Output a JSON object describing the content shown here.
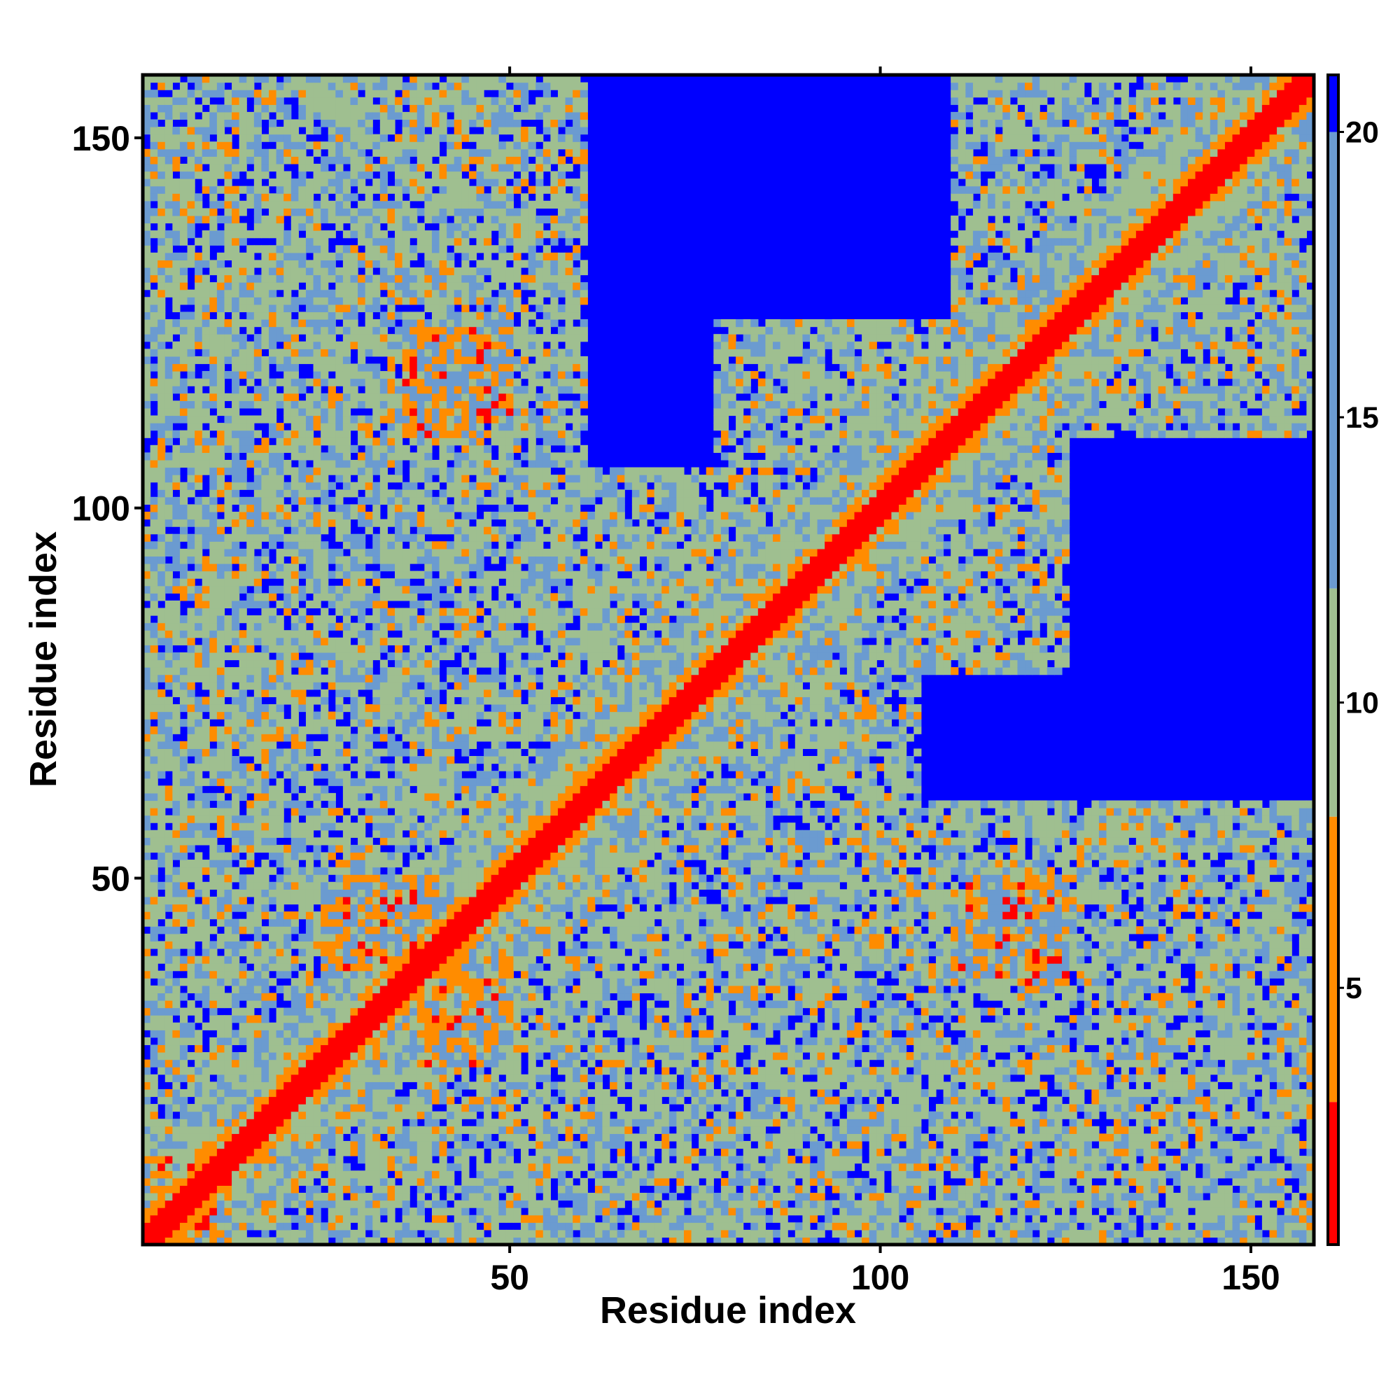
{
  "chart_data": {
    "type": "heatmap",
    "title": "",
    "xlabel": "Residue index",
    "ylabel": "Residue index",
    "xlim": [
      1,
      158
    ],
    "ylim": [
      1,
      158
    ],
    "x_ticks": [
      50,
      100,
      150
    ],
    "y_ticks": [
      50,
      100,
      150
    ],
    "colorbar": {
      "ticks": [
        5,
        10,
        15,
        20
      ],
      "range": [
        0.5,
        21
      ],
      "colors": [
        {
          "from": 0.5,
          "to": 3.0,
          "color": "#ff0000"
        },
        {
          "from": 3.0,
          "to": 8.0,
          "color": "#ff8c00"
        },
        {
          "from": 8.0,
          "to": 12.0,
          "color": "#9fbf90"
        },
        {
          "from": 12.0,
          "to": 20.0,
          "color": "#6b9bd0"
        },
        {
          "from": 20.0,
          "to": 21.0,
          "color": "#0000ff"
        }
      ]
    },
    "value_description": "pairwise residue distance matrix (symmetric); diagonal near 0, background above 20",
    "diagonal_value": 0,
    "background_value": 21,
    "contact_regions": [
      {
        "x": [
          1,
          10
        ],
        "y": [
          1,
          12
        ],
        "level": "orange"
      },
      {
        "x": [
          1,
          60
        ],
        "y": [
          55,
          160
        ],
        "level": "green"
      },
      {
        "x": [
          25,
          50
        ],
        "y": [
          95,
          160
        ],
        "level": "green"
      },
      {
        "x": [
          36,
          46
        ],
        "y": [
          110,
          125
        ],
        "level": "orange"
      },
      {
        "x": [
          52,
          105
        ],
        "y": [
          60,
          105
        ],
        "level": "green"
      },
      {
        "x": [
          78,
          115
        ],
        "y": [
          105,
          125
        ],
        "level": "green"
      },
      {
        "x": [
          110,
          120
        ],
        "y": [
          120,
          160
        ],
        "level": "green"
      },
      {
        "x": [
          130,
          158
        ],
        "y": [
          110,
          150
        ],
        "level": "green"
      },
      {
        "x": [
          1,
          50
        ],
        "y": [
          1,
          55
        ],
        "level": "green"
      },
      {
        "x": [
          28,
          40
        ],
        "y": [
          38,
          50
        ],
        "level": "orange"
      },
      {
        "x": [
          38,
          48
        ],
        "y": [
          25,
          38
        ],
        "level": "orange"
      },
      {
        "x": [
          50,
          120
        ],
        "y": [
          20,
          40
        ],
        "level": "green"
      },
      {
        "x": [
          95,
          120
        ],
        "y": [
          1,
          40
        ],
        "level": "green"
      },
      {
        "x": [
          110,
          158
        ],
        "y": [
          30,
          55
        ],
        "level": "green"
      },
      {
        "x": [
          112,
          125
        ],
        "y": [
          40,
          50
        ],
        "level": "orange"
      },
      {
        "x": [
          140,
          158
        ],
        "y": [
          1,
          20
        ],
        "level": "green"
      }
    ]
  },
  "icons": {
    "colorbar": "colorbar-icon"
  }
}
